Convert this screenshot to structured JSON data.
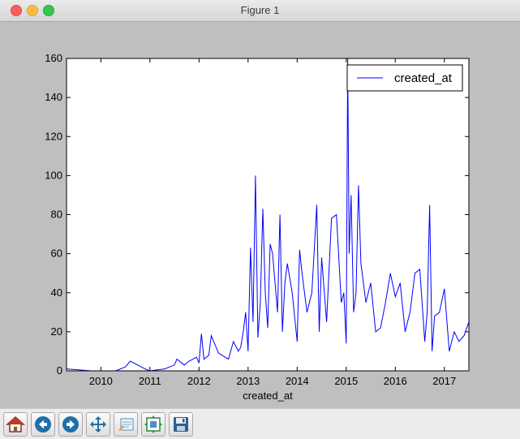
{
  "window": {
    "title": "Figure 1"
  },
  "toolbar": {
    "buttons": [
      {
        "name": "home-button",
        "icon": "home-icon"
      },
      {
        "name": "back-button",
        "icon": "back-arrow-icon"
      },
      {
        "name": "forward-button",
        "icon": "forward-arrow-icon"
      },
      {
        "name": "pan-button",
        "icon": "pan-arrows-icon"
      },
      {
        "name": "zoom-button",
        "icon": "zoom-rect-icon"
      },
      {
        "name": "subplots-button",
        "icon": "subplots-icon"
      },
      {
        "name": "save-button",
        "icon": "save-disk-icon"
      }
    ]
  },
  "colors": {
    "series": "#0000ff",
    "background": "#bfbfbf",
    "plot_bg": "#ffffff"
  },
  "chart_data": {
    "type": "line",
    "title": "",
    "xlabel": "created_at",
    "ylabel": "",
    "xlim": [
      2009.3,
      2017.5
    ],
    "ylim": [
      0,
      160
    ],
    "x_ticks": [
      "2010",
      "2011",
      "2012",
      "2013",
      "2014",
      "2015",
      "2016",
      "2017"
    ],
    "y_ticks": [
      "0",
      "20",
      "40",
      "60",
      "80",
      "100",
      "120",
      "140",
      "160"
    ],
    "grid": false,
    "legend": {
      "position": "top-right",
      "entries": [
        "created_at"
      ]
    },
    "series": [
      {
        "name": "created_at",
        "x": [
          2009.3,
          2009.8,
          2010.0,
          2010.3,
          2010.5,
          2010.6,
          2010.9,
          2011.0,
          2011.3,
          2011.5,
          2011.55,
          2011.7,
          2011.8,
          2011.95,
          2012.0,
          2012.05,
          2012.1,
          2012.2,
          2012.25,
          2012.4,
          2012.6,
          2012.7,
          2012.8,
          2012.85,
          2012.9,
          2012.95,
          2013.0,
          2013.05,
          2013.1,
          2013.15,
          2013.2,
          2013.25,
          2013.3,
          2013.35,
          2013.4,
          2013.45,
          2013.5,
          2013.6,
          2013.65,
          2013.7,
          2013.75,
          2013.8,
          2013.9,
          2014.0,
          2014.05,
          2014.1,
          2014.2,
          2014.3,
          2014.4,
          2014.45,
          2014.5,
          2014.6,
          2014.7,
          2014.8,
          2014.9,
          2014.95,
          2015.0,
          2015.03,
          2015.06,
          2015.1,
          2015.15,
          2015.2,
          2015.25,
          2015.3,
          2015.4,
          2015.5,
          2015.6,
          2015.7,
          2015.8,
          2015.9,
          2016.0,
          2016.1,
          2016.2,
          2016.3,
          2016.4,
          2016.5,
          2016.6,
          2016.65,
          2016.7,
          2016.75,
          2016.8,
          2016.9,
          2017.0,
          2017.1,
          2017.2,
          2017.3,
          2017.4,
          2017.5
        ],
        "y": [
          1,
          0,
          0,
          0,
          2,
          5,
          1,
          0,
          1,
          3,
          6,
          3,
          5,
          7,
          4,
          19,
          6,
          8,
          18,
          9,
          6,
          15,
          10,
          12,
          20,
          30,
          10,
          63,
          25,
          100,
          17,
          35,
          83,
          40,
          22,
          65,
          60,
          30,
          80,
          20,
          45,
          55,
          40,
          15,
          62,
          50,
          30,
          40,
          85,
          20,
          58,
          25,
          78,
          80,
          35,
          40,
          14,
          160,
          60,
          90,
          30,
          40,
          95,
          55,
          35,
          45,
          20,
          22,
          35,
          50,
          38,
          45,
          20,
          30,
          50,
          52,
          15,
          30,
          85,
          10,
          28,
          30,
          42,
          10,
          20,
          15,
          18,
          25
        ]
      }
    ]
  }
}
